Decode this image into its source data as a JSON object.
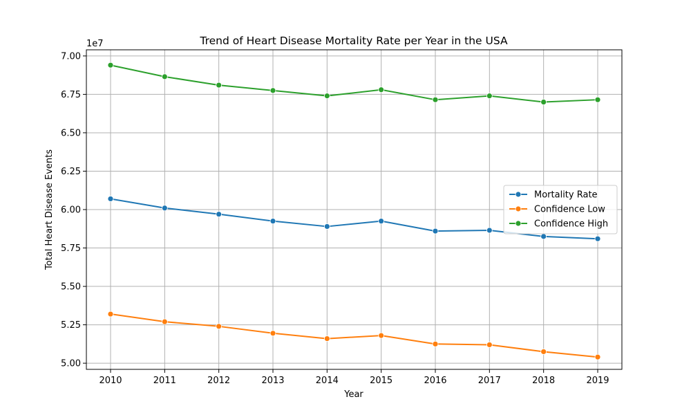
{
  "chart_data": {
    "type": "line",
    "title": "Trend of Heart Disease Mortality Rate per Year in the USA",
    "xlabel": "Year",
    "ylabel": "Total Heart Disease Events",
    "y_offset_label": "1e7",
    "x": [
      2010,
      2011,
      2012,
      2013,
      2014,
      2015,
      2016,
      2017,
      2018,
      2019
    ],
    "xticks": [
      "2010",
      "2011",
      "2012",
      "2013",
      "2014",
      "2015",
      "2016",
      "2017",
      "2018",
      "2019"
    ],
    "yticks": [
      "5.00",
      "5.25",
      "5.50",
      "5.75",
      "6.00",
      "6.25",
      "6.50",
      "6.75",
      "7.00"
    ],
    "ytick_values": [
      5.0,
      5.25,
      5.5,
      5.75,
      6.0,
      6.25,
      6.5,
      6.75,
      7.0
    ],
    "ylim": [
      4.96,
      7.04
    ],
    "grid": true,
    "legend_position": "center-right",
    "series": [
      {
        "name": "Mortality Rate",
        "color": "#1f77b4",
        "values": [
          6.07,
          6.01,
          5.97,
          5.925,
          5.89,
          5.925,
          5.86,
          5.865,
          5.825,
          5.81
        ]
      },
      {
        "name": "Confidence Low",
        "color": "#ff7f0e",
        "values": [
          5.32,
          5.27,
          5.24,
          5.195,
          5.16,
          5.18,
          5.125,
          5.12,
          5.075,
          5.04
        ]
      },
      {
        "name": "Confidence High",
        "color": "#2ca02c",
        "values": [
          6.94,
          6.865,
          6.81,
          6.775,
          6.74,
          6.78,
          6.715,
          6.74,
          6.7,
          6.715
        ]
      }
    ]
  }
}
